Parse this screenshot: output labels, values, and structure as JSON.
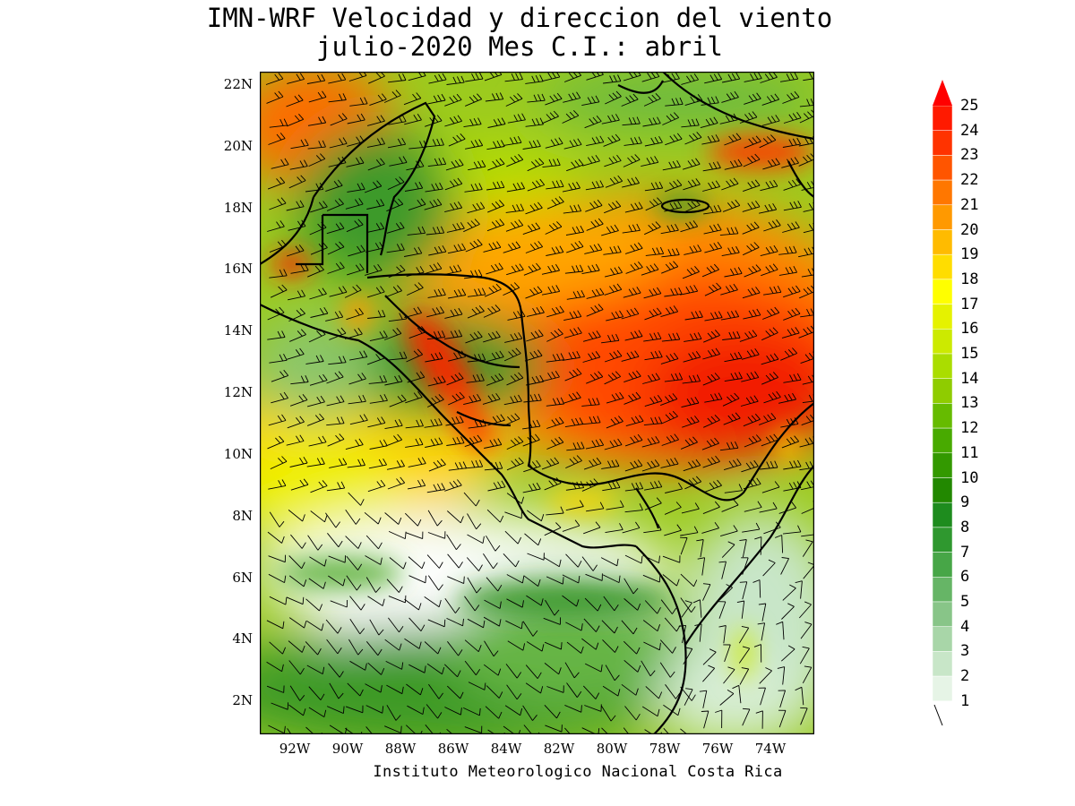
{
  "title": {
    "line1": "IMN-WRF Velocidad y direccion del viento",
    "line2": "julio-2020 Mes C.I.: abril"
  },
  "credit": "Instituto Meteorologico Nacional Costa Rica",
  "axes": {
    "lat_labels": [
      "22N",
      "20N",
      "18N",
      "16N",
      "14N",
      "12N",
      "10N",
      "8N",
      "6N",
      "4N",
      "2N"
    ],
    "lon_labels": [
      "92W",
      "90W",
      "88W",
      "86W",
      "84W",
      "82W",
      "80W",
      "78W",
      "76W",
      "74W"
    ],
    "lat_range": [
      1.0,
      22.5
    ],
    "lon_range": [
      -93.0,
      -72.0
    ]
  },
  "colorbar": {
    "labels": [
      "25",
      "24",
      "23",
      "22",
      "21",
      "20",
      "19",
      "18",
      "17",
      "16",
      "15",
      "14",
      "13",
      "12",
      "11",
      "10",
      "9",
      "8",
      "7",
      "6",
      "5",
      "4",
      "3",
      "2",
      "1"
    ],
    "colors": [
      "#ff1a00",
      "#ff3300",
      "#ff5500",
      "#ff7700",
      "#ff9900",
      "#ffbb00",
      "#ffdd00",
      "#ffff00",
      "#e5f200",
      "#ccea00",
      "#aadd00",
      "#8fcc00",
      "#66bb00",
      "#48aa00",
      "#339900",
      "#228800",
      "#1e8c1e",
      "#2f982f",
      "#47a647",
      "#66b566",
      "#88c588",
      "#a8d6a8",
      "#c8e6c8",
      "#e6f4e6",
      "#ffffff"
    ],
    "over_color": "#ff0000"
  },
  "map": {
    "regions": [
      {
        "name": "northwest-gulf-strong",
        "color": "#ff5a0a"
      },
      {
        "name": "caribbean-jet-core",
        "color": "#f02a00"
      },
      {
        "name": "pacific-calm",
        "color": "#ffffff"
      },
      {
        "name": "land",
        "color": "#3c9a28"
      }
    ]
  }
}
